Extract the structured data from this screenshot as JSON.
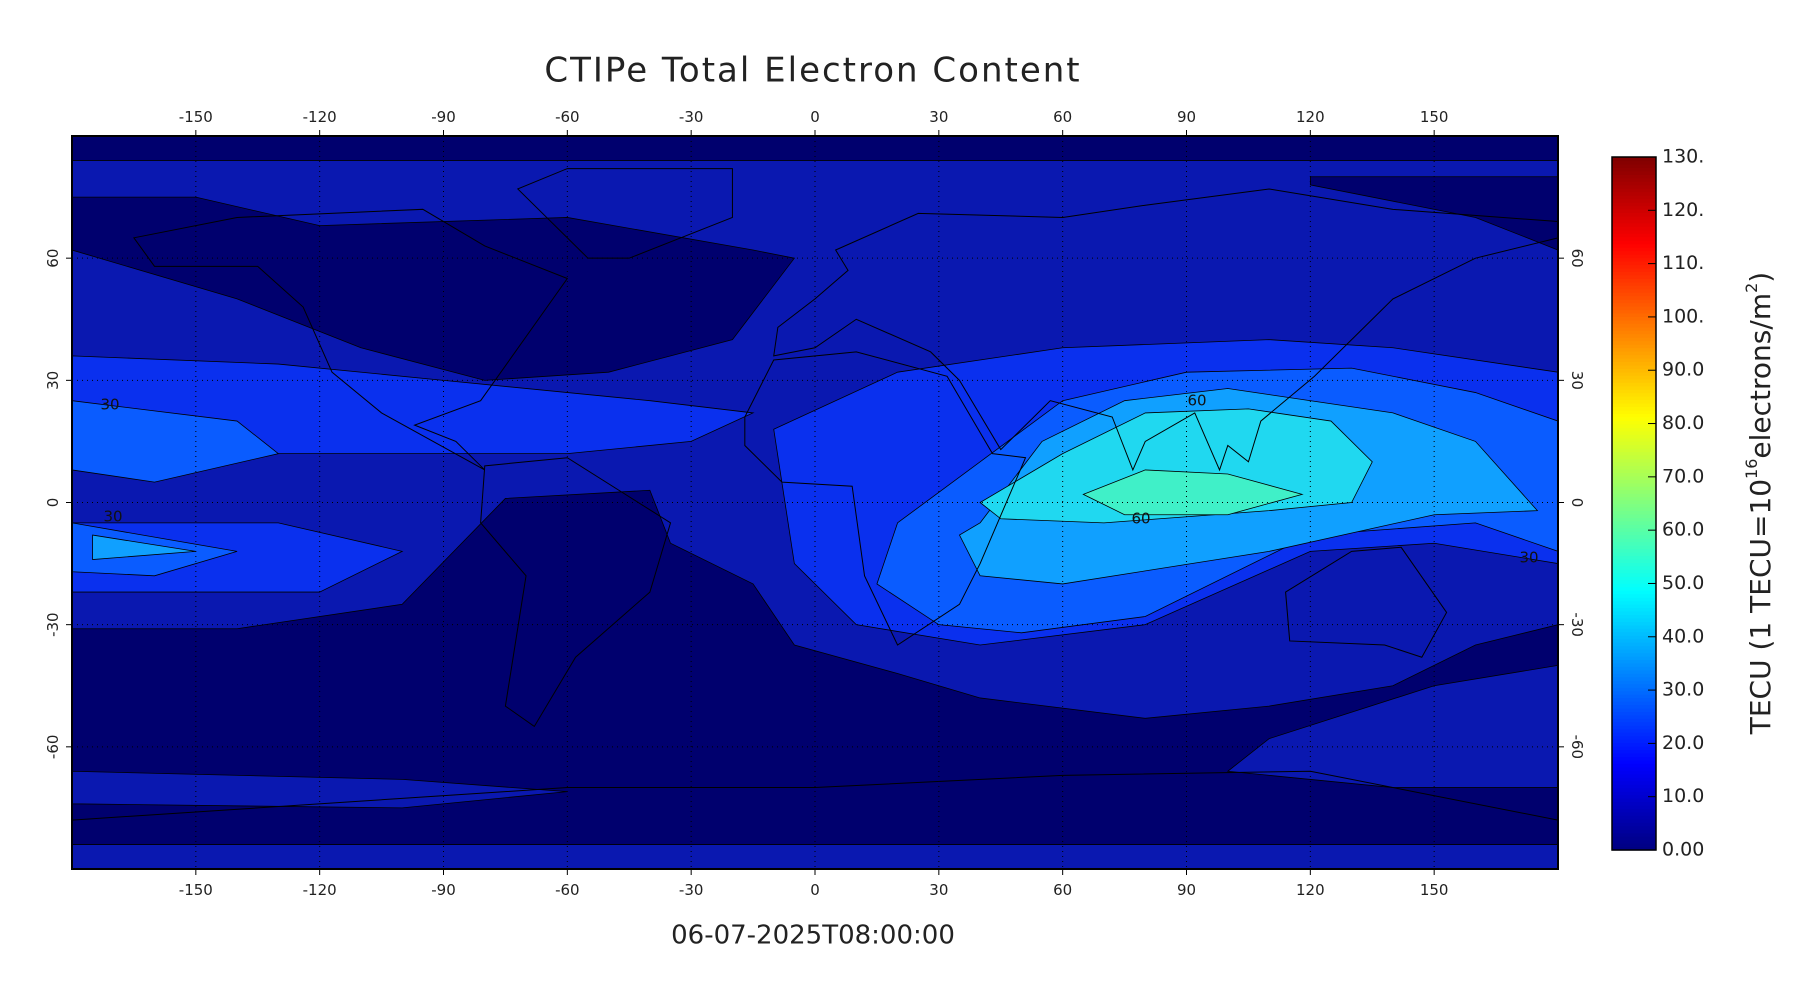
{
  "chart_data": {
    "type": "contour-map",
    "title": "CTIPe Total Electron Content",
    "subtitle": "06-07-2025T08:00:00",
    "xlim": [
      -180,
      180
    ],
    "ylim": [
      -90,
      90
    ],
    "xticks": [
      -150,
      -120,
      -90,
      -60,
      -30,
      0,
      30,
      60,
      90,
      120,
      150
    ],
    "yticks": [
      -60,
      -30,
      0,
      30,
      60
    ],
    "grid": true,
    "colormap": "jet",
    "clim": [
      0,
      130
    ],
    "cticks": [
      {
        "value": 0,
        "label": "0.00"
      },
      {
        "value": 10,
        "label": "10.0"
      },
      {
        "value": 20,
        "label": "20.0"
      },
      {
        "value": 30,
        "label": "30.0"
      },
      {
        "value": 40,
        "label": "40.0"
      },
      {
        "value": 50,
        "label": "50.0"
      },
      {
        "value": 60,
        "label": "60.0"
      },
      {
        "value": 70,
        "label": "70.0"
      },
      {
        "value": 80,
        "label": "80.0"
      },
      {
        "value": 90,
        "label": "90.0"
      },
      {
        "value": 100,
        "label": "100."
      },
      {
        "value": 110,
        "label": "110."
      },
      {
        "value": 120,
        "label": "120."
      },
      {
        "value": 130,
        "label": "130."
      }
    ],
    "colorbar_label": [
      "TECU (1 TECU=10",
      "16",
      "electrons/m",
      "2",
      ")"
    ],
    "contour_labels": [
      30,
      30,
      30,
      60,
      60
    ]
  }
}
